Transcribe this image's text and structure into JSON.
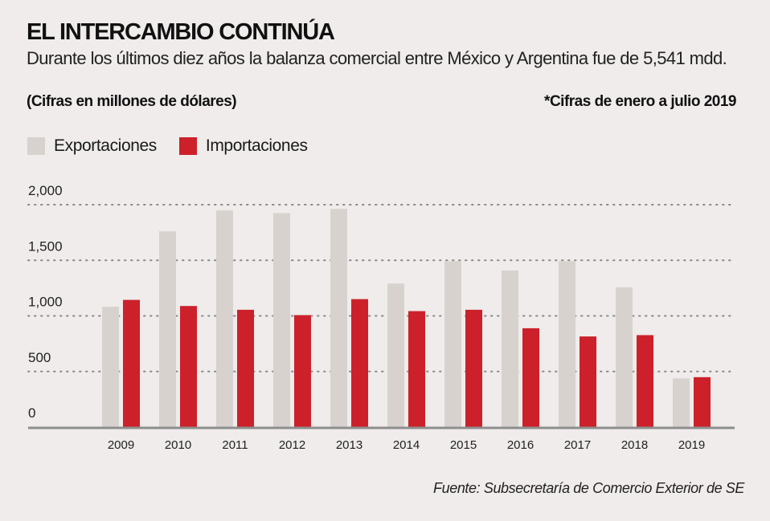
{
  "header": {
    "title": "EL INTERCAMBIO CONTINÚA",
    "subtitle": "Durante los últimos diez años la balanza comercial entre México y Argentina fue de 5,541 mdd.",
    "units_note": "(Cifras en millones de dólares)",
    "period_note": "*Cifras de enero a julio 2019"
  },
  "footer": {
    "source": "Fuente: Subsecretaría de Comercio Exterior de SE"
  },
  "colors": {
    "background": "#efeceb",
    "exportaciones": "#d8d2cf",
    "importaciones": "#cc212a",
    "gridline": "#8a8a8a",
    "axis": "#8e8e8e"
  },
  "chart_data": {
    "type": "bar",
    "title": "EL INTERCAMBIO CONTINÚA",
    "xlabel": "",
    "ylabel": "Cifras en millones de dólares",
    "categories": [
      "2009",
      "2010",
      "2011",
      "2012",
      "2013",
      "2014",
      "2015",
      "2016",
      "2017",
      "2018",
      "2019"
    ],
    "series": [
      {
        "name": "Exportaciones",
        "color": "#d8d2cf",
        "values": [
          1082,
          1761,
          1949,
          1925,
          1963,
          1291,
          1492,
          1408,
          1492,
          1257,
          438
        ]
      },
      {
        "name": "Importaciones",
        "color": "#cc212a",
        "values": [
          1144,
          1089,
          1055,
          1007,
          1151,
          1043,
          1055,
          889,
          815,
          827,
          449
        ]
      }
    ],
    "ylim": [
      0,
      2000
    ],
    "yticks": [
      0,
      500,
      1000,
      1500,
      2000
    ],
    "ytick_labels": [
      "0",
      "500",
      "1,000",
      "1,500",
      "2,000"
    ],
    "grid": true,
    "grid_style": "dotted",
    "legend": {
      "placement": "top-left",
      "entries": [
        "Exportaciones",
        "Importaciones"
      ]
    }
  }
}
